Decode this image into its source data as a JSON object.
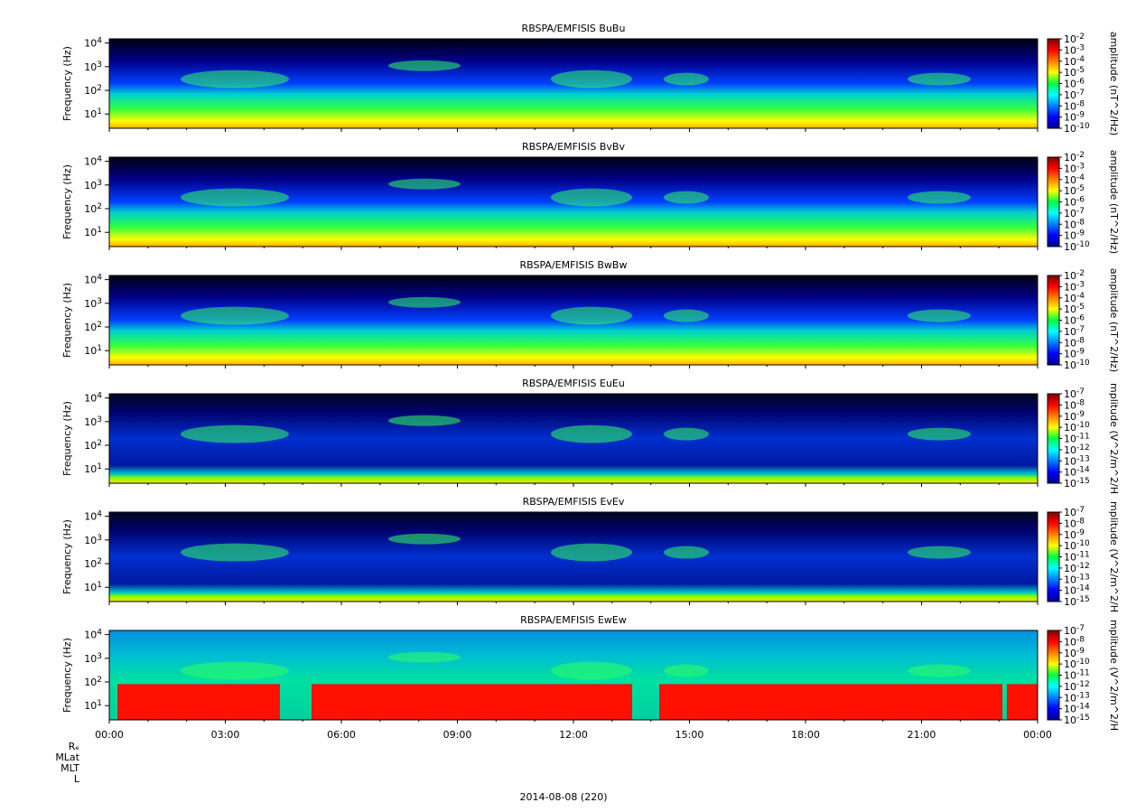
{
  "figure": {
    "date_label": "2014-08-08 (220)",
    "ephemeris_labels": [
      "Rₑ",
      "MLat",
      "MLT",
      "L"
    ]
  },
  "chart_data": [
    {
      "type": "heatmap",
      "title": "RBSPA/EMFISIS  BuBu",
      "ylabel": "Frequency (Hz)",
      "y_scale": "log",
      "ylim": [
        2.5,
        15000
      ],
      "yticks": [
        "10^1",
        "10^2",
        "10^3",
        "10^4"
      ],
      "colorbar_label": "amplitude (nT^2/Hz)",
      "colorbar_ticks": [
        "10^-2",
        "10^-3",
        "10^-4",
        "10^-5",
        "10^-6",
        "10^-7",
        "10^-8",
        "10^-9",
        "10^-10"
      ],
      "colorbar_range": [
        -10,
        -2
      ]
    },
    {
      "type": "heatmap",
      "title": "RBSPA/EMFISIS  BvBv",
      "ylabel": "Frequency (Hz)",
      "y_scale": "log",
      "ylim": [
        2.5,
        15000
      ],
      "yticks": [
        "10^1",
        "10^2",
        "10^3",
        "10^4"
      ],
      "colorbar_label": "amplitude (nT^2/Hz)",
      "colorbar_ticks": [
        "10^-2",
        "10^-3",
        "10^-4",
        "10^-5",
        "10^-6",
        "10^-7",
        "10^-8",
        "10^-9",
        "10^-10"
      ],
      "colorbar_range": [
        -10,
        -2
      ]
    },
    {
      "type": "heatmap",
      "title": "RBSPA/EMFISIS  BwBw",
      "ylabel": "Frequency (Hz)",
      "y_scale": "log",
      "ylim": [
        2.5,
        15000
      ],
      "yticks": [
        "10^1",
        "10^2",
        "10^3",
        "10^4"
      ],
      "colorbar_label": "amplitude (nT^2/Hz)",
      "colorbar_ticks": [
        "10^-2",
        "10^-3",
        "10^-4",
        "10^-5",
        "10^-6",
        "10^-7",
        "10^-8",
        "10^-9",
        "10^-10"
      ],
      "colorbar_range": [
        -10,
        -2
      ]
    },
    {
      "type": "heatmap",
      "title": "RBSPA/EMFISIS  EuEu",
      "ylabel": "Frequency (Hz)",
      "y_scale": "log",
      "ylim": [
        2.5,
        15000
      ],
      "yticks": [
        "10^1",
        "10^2",
        "10^3",
        "10^4"
      ],
      "colorbar_label": "mplitude (V^2/m^2/H",
      "colorbar_ticks": [
        "10^-7",
        "10^-8",
        "10^-9",
        "10^-10",
        "10^-11",
        "10^-12",
        "10^-13",
        "10^-14",
        "10^-15"
      ],
      "colorbar_range": [
        -15,
        -7
      ]
    },
    {
      "type": "heatmap",
      "title": "RBSPA/EMFISIS  EvEv",
      "ylabel": "Frequency (Hz)",
      "y_scale": "log",
      "ylim": [
        2.5,
        15000
      ],
      "yticks": [
        "10^1",
        "10^2",
        "10^3",
        "10^4"
      ],
      "colorbar_label": "mplitude (V^2/m^2/H",
      "colorbar_ticks": [
        "10^-7",
        "10^-8",
        "10^-9",
        "10^-10",
        "10^-11",
        "10^-12",
        "10^-13",
        "10^-14",
        "10^-15"
      ],
      "colorbar_range": [
        -15,
        -7
      ]
    },
    {
      "type": "heatmap",
      "title": "RBSPA/EMFISIS  EwEw",
      "ylabel": "Frequency (Hz)",
      "y_scale": "log",
      "ylim": [
        2.5,
        15000
      ],
      "yticks": [
        "10^1",
        "10^2",
        "10^3",
        "10^4"
      ],
      "colorbar_label": "mplitude (V^2/m^2/H",
      "colorbar_ticks": [
        "10^-7",
        "10^-8",
        "10^-9",
        "10^-10",
        "10^-11",
        "10^-12",
        "10^-13",
        "10^-14",
        "10^-15"
      ],
      "colorbar_range": [
        -15,
        -7
      ],
      "xticks": [
        "00:00",
        "03:00",
        "06:00",
        "09:00",
        "12:00",
        "15:00",
        "18:00",
        "21:00",
        "00:00"
      ]
    }
  ]
}
